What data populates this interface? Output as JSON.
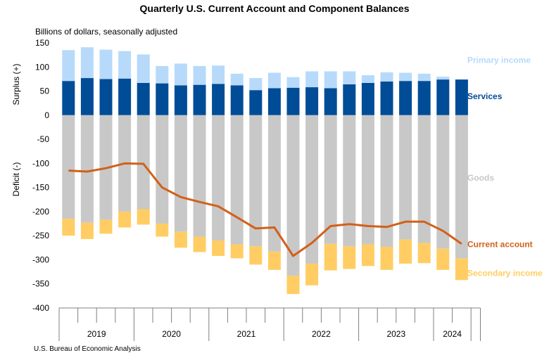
{
  "chart_data": {
    "type": "bar",
    "stacked": true,
    "title": "Quarterly U.S. Current Account and Component Balances",
    "subtitle": "Billions of dollars, seasonally adjusted",
    "ylabel_top": "Surplus (+)",
    "ylabel_bottom": "Deficit (-)",
    "ylim": [
      -400,
      150
    ],
    "yticks": [
      150,
      100,
      50,
      0,
      -50,
      -100,
      -150,
      -200,
      -250,
      -300,
      -350,
      -400
    ],
    "years": [
      "2019",
      "2020",
      "2021",
      "2022",
      "2023",
      "2024"
    ],
    "categories": [
      "2019Q1",
      "2019Q2",
      "2019Q3",
      "2019Q4",
      "2020Q1",
      "2020Q2",
      "2020Q3",
      "2020Q4",
      "2021Q1",
      "2021Q2",
      "2021Q3",
      "2021Q4",
      "2022Q1",
      "2022Q2",
      "2022Q3",
      "2022Q4",
      "2023Q1",
      "2023Q2",
      "2023Q3",
      "2023Q4",
      "2024Q1",
      "2024Q2"
    ],
    "series": [
      {
        "name": "Services",
        "kind": "bar",
        "color": "#004C97",
        "values": [
          71,
          77,
          75,
          76,
          67,
          66,
          62,
          63,
          65,
          62,
          52,
          56,
          57,
          58,
          56,
          64,
          67,
          70,
          71,
          71,
          74,
          74
        ]
      },
      {
        "name": "Primary income",
        "kind": "bar",
        "color": "#B7DAFB",
        "values": [
          64,
          64,
          61,
          57,
          59,
          36,
          45,
          39,
          38,
          24,
          25,
          32,
          22,
          33,
          35,
          27,
          16,
          19,
          17,
          15,
          6,
          0
        ]
      },
      {
        "name": "Goods",
        "kind": "bar",
        "color": "#C8C8C8",
        "values": [
          -215,
          -223,
          -217,
          -200,
          -195,
          -225,
          -242,
          -252,
          -260,
          -268,
          -272,
          -283,
          -333,
          -308,
          -267,
          -272,
          -268,
          -273,
          -258,
          -265,
          -277,
          -297
        ]
      },
      {
        "name": "Secondary income",
        "kind": "bar",
        "color": "#FFCD63",
        "values": [
          -35,
          -34,
          -29,
          -33,
          -32,
          -27,
          -33,
          -32,
          -32,
          -29,
          -38,
          -38,
          -38,
          -45,
          -55,
          -47,
          -45,
          -48,
          -50,
          -42,
          -44,
          -45
        ]
      },
      {
        "name": "Current account",
        "kind": "line",
        "color": "#D2601A",
        "values": [
          -115,
          -117,
          -110,
          -100,
          -101,
          -150,
          -170,
          -180,
          -189,
          -212,
          -235,
          -233,
          -292,
          -265,
          -230,
          -226,
          -230,
          -232,
          -221,
          -221,
          -240,
          -267
        ]
      }
    ],
    "legend": "right, inline labels",
    "source": "U.S. Bureau of Economic Analysis"
  }
}
